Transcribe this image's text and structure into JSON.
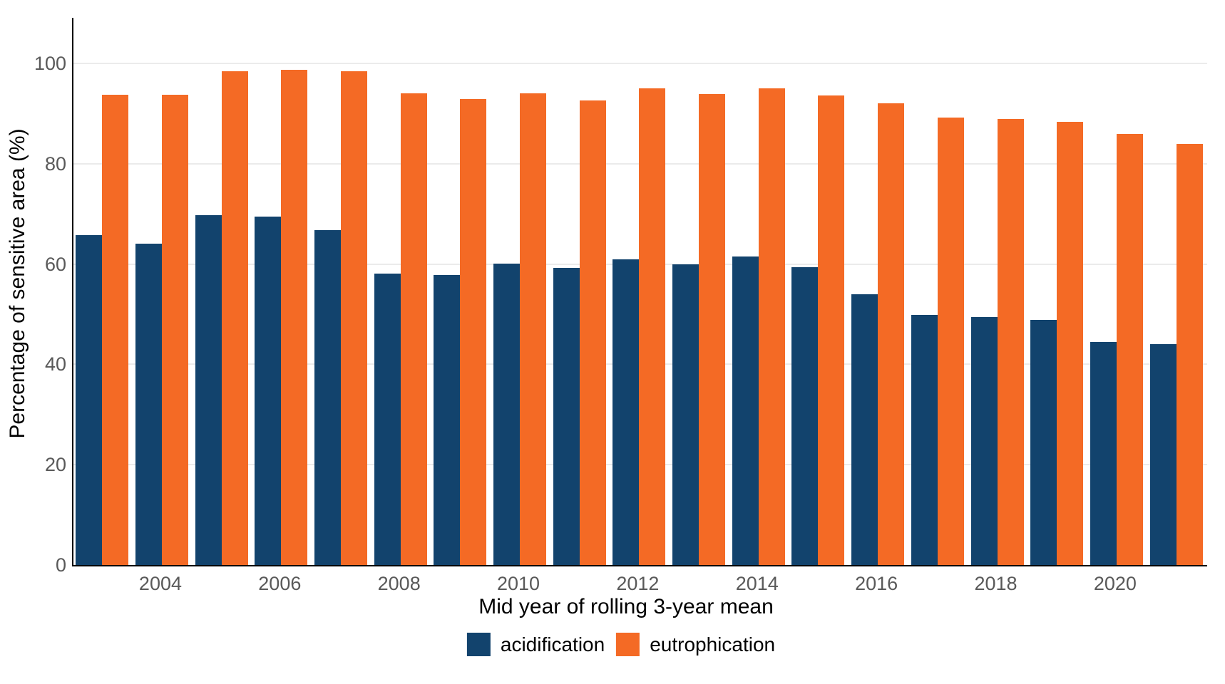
{
  "chart_data": {
    "type": "bar",
    "title": "",
    "xlabel": "Mid year of rolling 3-year mean",
    "ylabel": "Percentage of sensitive area (%)",
    "categories": [
      2003,
      2004,
      2005,
      2006,
      2007,
      2008,
      2009,
      2010,
      2011,
      2012,
      2013,
      2014,
      2015,
      2016,
      2017,
      2018,
      2019,
      2020,
      2021
    ],
    "series": [
      {
        "name": "acidification",
        "color": "#12436D",
        "values": [
          65.7,
          64.0,
          69.8,
          69.4,
          66.7,
          58.1,
          57.8,
          60.1,
          59.2,
          61.0,
          60.0,
          61.5,
          59.4,
          54.0,
          49.8,
          49.4,
          48.8,
          44.4,
          44.0
        ]
      },
      {
        "name": "eutrophication",
        "color": "#F46A25",
        "values": [
          93.8,
          93.7,
          98.4,
          98.7,
          98.5,
          94.1,
          92.9,
          94.0,
          92.6,
          95.0,
          93.9,
          95.1,
          93.6,
          92.0,
          89.2,
          88.9,
          88.4,
          85.9,
          84.0
        ]
      }
    ],
    "ylim": [
      0,
      109
    ],
    "yticks": [
      0,
      20,
      40,
      60,
      80,
      100
    ],
    "xtick_labels": [
      "2004",
      "2006",
      "2008",
      "2010",
      "2012",
      "2014",
      "2016",
      "2018",
      "2020"
    ],
    "grid": "horizontal-major-only",
    "legend_position": "bottom-center"
  },
  "style": {
    "axis_line_color": "#000000",
    "gridline_color": "#ebebeb",
    "tick_label_color": "#595959",
    "axis_title_color": "#000000",
    "background_color": "#ffffff"
  }
}
